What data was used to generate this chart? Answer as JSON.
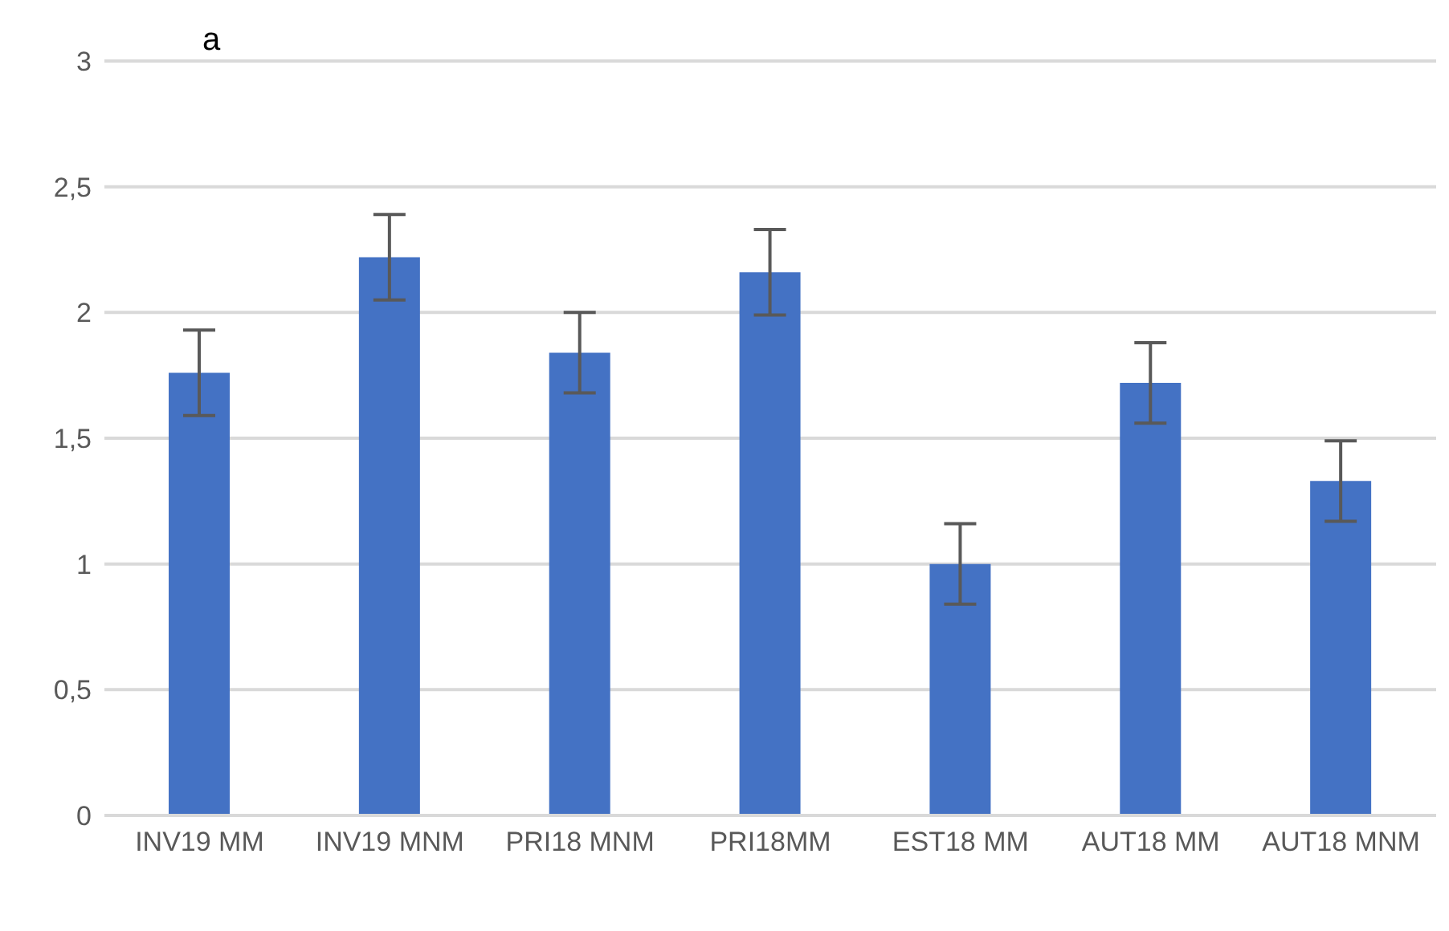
{
  "chart_data": {
    "type": "bar",
    "title": "a",
    "categories": [
      "INV19 MM",
      "INV19 MNM",
      "PRI18 MNM",
      "PRI18MM",
      "EST18 MM",
      "AUT18 MM",
      "AUT18 MNM"
    ],
    "values": [
      1.76,
      2.22,
      1.84,
      2.16,
      1.0,
      1.72,
      1.33
    ],
    "errors": [
      0.17,
      0.17,
      0.16,
      0.17,
      0.16,
      0.16,
      0.16
    ],
    "color": "#4472c4",
    "ylim": [
      0,
      3
    ],
    "yticks": [
      0,
      {
        "value": 0.5,
        "label": "0,5"
      },
      1,
      {
        "value": 1.5,
        "label": "1,5"
      },
      2,
      {
        "value": 2.5,
        "label": "2,5"
      },
      3
    ],
    "grid": "y",
    "legend": false
  }
}
